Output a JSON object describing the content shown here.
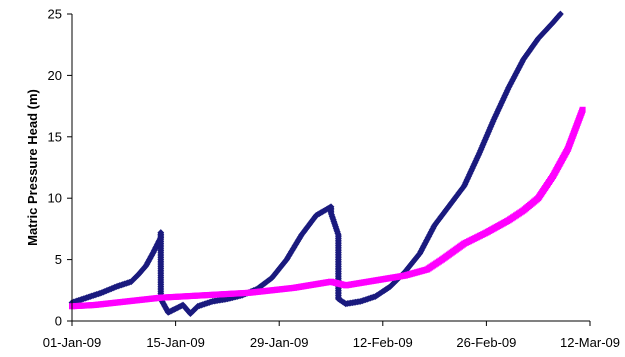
{
  "chart_data": {
    "type": "scatter",
    "title": "",
    "xlabel": "",
    "ylabel": "Matric Pressure Head (m)",
    "x_ticks": [
      "01-Jan-09",
      "15-Jan-09",
      "29-Jan-09",
      "12-Feb-09",
      "26-Feb-09",
      "12-Mar-09"
    ],
    "y_ticks": [
      "0",
      "5",
      "10",
      "15",
      "20",
      "25"
    ],
    "xlim": [
      "2009-01-01",
      "2009-03-12"
    ],
    "ylim": [
      0,
      25
    ],
    "grid": false,
    "legend": "none",
    "series": [
      {
        "color": "#1a1a7e",
        "marker": "diamond",
        "points": [
          [
            "2009-01-01",
            1.5
          ],
          [
            "2009-01-03",
            1.9
          ],
          [
            "2009-01-05",
            2.3
          ],
          [
            "2009-01-07",
            2.8
          ],
          [
            "2009-01-09",
            3.2
          ],
          [
            "2009-01-10",
            3.8
          ],
          [
            "2009-01-11",
            4.5
          ],
          [
            "2009-01-12",
            5.6
          ],
          [
            "2009-01-13",
            6.8
          ],
          [
            "2009-01-13",
            7.2
          ],
          [
            "2009-01-13",
            1.8
          ],
          [
            "2009-01-14",
            0.7
          ],
          [
            "2009-01-15",
            1.0
          ],
          [
            "2009-01-16",
            1.3
          ],
          [
            "2009-01-17",
            0.6
          ],
          [
            "2009-01-18",
            1.2
          ],
          [
            "2009-01-20",
            1.6
          ],
          [
            "2009-01-22",
            1.8
          ],
          [
            "2009-01-24",
            2.1
          ],
          [
            "2009-01-26",
            2.6
          ],
          [
            "2009-01-28",
            3.5
          ],
          [
            "2009-01-30",
            5.0
          ],
          [
            "2009-02-01",
            7.0
          ],
          [
            "2009-02-03",
            8.6
          ],
          [
            "2009-02-05",
            9.3
          ],
          [
            "2009-02-05",
            8.8
          ],
          [
            "2009-02-06",
            7.0
          ],
          [
            "2009-02-06",
            4.3
          ],
          [
            "2009-02-06",
            1.8
          ],
          [
            "2009-02-07",
            1.4
          ],
          [
            "2009-02-09",
            1.6
          ],
          [
            "2009-02-11",
            2.0
          ],
          [
            "2009-02-13",
            2.8
          ],
          [
            "2009-02-15",
            4.0
          ],
          [
            "2009-02-17",
            5.5
          ],
          [
            "2009-02-19",
            7.8
          ],
          [
            "2009-02-21",
            9.4
          ],
          [
            "2009-02-23",
            11.0
          ],
          [
            "2009-02-25",
            13.6
          ],
          [
            "2009-02-27",
            16.4
          ],
          [
            "2009-03-01",
            19.0
          ],
          [
            "2009-03-03",
            21.3
          ],
          [
            "2009-03-05",
            23.0
          ],
          [
            "2009-03-07",
            24.3
          ],
          [
            "2009-03-08",
            25.0
          ]
        ]
      },
      {
        "color": "#ff00ff",
        "marker": "square",
        "points": [
          [
            "2009-01-01",
            1.2
          ],
          [
            "2009-01-04",
            1.3
          ],
          [
            "2009-01-07",
            1.5
          ],
          [
            "2009-01-10",
            1.7
          ],
          [
            "2009-01-13",
            1.9
          ],
          [
            "2009-01-16",
            2.0
          ],
          [
            "2009-01-19",
            2.1
          ],
          [
            "2009-01-22",
            2.2
          ],
          [
            "2009-01-25",
            2.3
          ],
          [
            "2009-01-28",
            2.5
          ],
          [
            "2009-01-31",
            2.7
          ],
          [
            "2009-02-03",
            3.0
          ],
          [
            "2009-02-05",
            3.2
          ],
          [
            "2009-02-07",
            2.9
          ],
          [
            "2009-02-09",
            3.1
          ],
          [
            "2009-02-12",
            3.4
          ],
          [
            "2009-02-15",
            3.7
          ],
          [
            "2009-02-18",
            4.2
          ],
          [
            "2009-02-20",
            5.0
          ],
          [
            "2009-02-23",
            6.3
          ],
          [
            "2009-02-26",
            7.2
          ],
          [
            "2009-03-01",
            8.2
          ],
          [
            "2009-03-03",
            9.0
          ],
          [
            "2009-03-05",
            10.0
          ],
          [
            "2009-03-07",
            11.8
          ],
          [
            "2009-03-09",
            14.0
          ],
          [
            "2009-03-11",
            17.2
          ]
        ]
      }
    ]
  }
}
